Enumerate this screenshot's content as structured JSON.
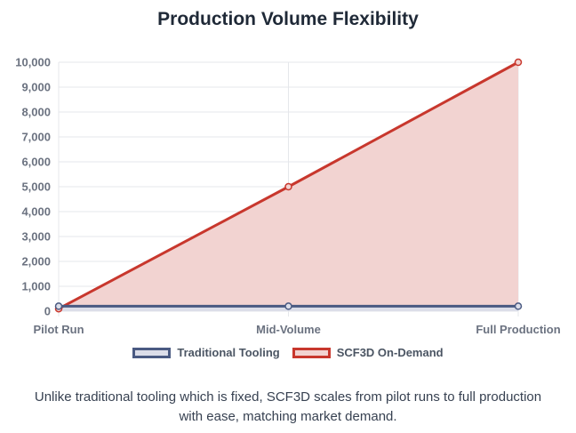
{
  "chart_data": {
    "type": "line",
    "title": "Production Volume Flexibility",
    "categories": [
      "Pilot Run",
      "Mid-Volume",
      "Full Production"
    ],
    "ylim": [
      0,
      10000
    ],
    "yticks": [
      0,
      1000,
      2000,
      3000,
      4000,
      5000,
      6000,
      7000,
      8000,
      9000,
      10000
    ],
    "ytick_labels": [
      "0",
      "1,000",
      "2,000",
      "3,000",
      "4,000",
      "5,000",
      "6,000",
      "7,000",
      "8,000",
      "9,000",
      "10,000"
    ],
    "grid": true,
    "legend_position": "bottom",
    "series": [
      {
        "name": "Traditional Tooling",
        "values": [
          200,
          200,
          200
        ],
        "line_color": "#4a5a82",
        "fill_color": "#dcdee9",
        "filled": true
      },
      {
        "name": "SCF3D On-Demand",
        "values": [
          100,
          5000,
          10000
        ],
        "line_color": "#c8372d",
        "fill_color": "#f2d3d1",
        "filled": true
      }
    ]
  },
  "caption": "Unlike traditional tooling which is fixed, SCF3D scales from pilot runs to full production with ease, matching market demand."
}
